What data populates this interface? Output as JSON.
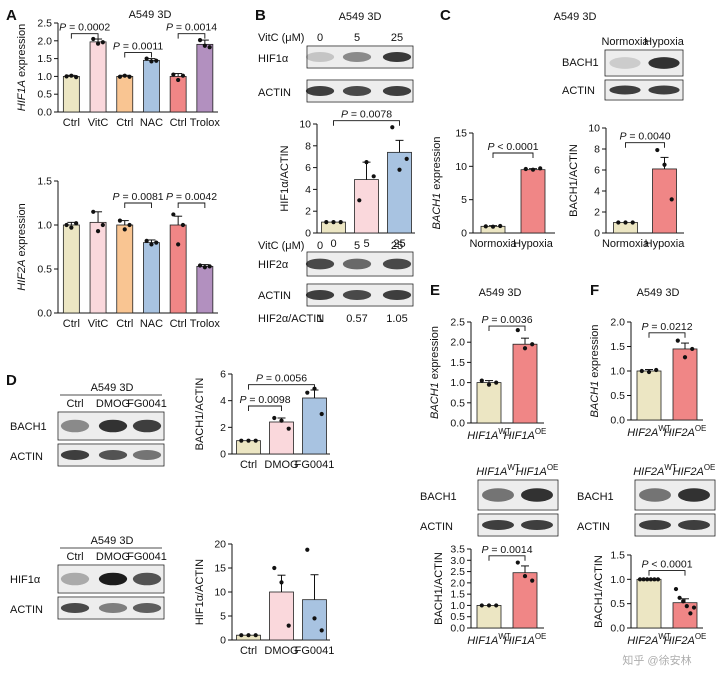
{
  "panels": {
    "A": {
      "label": "A",
      "context": "A549 3D"
    },
    "B": {
      "label": "B",
      "context": "A549 3D"
    },
    "C": {
      "label": "C",
      "context": "A549 3D"
    },
    "D": {
      "label": "D",
      "context": "A549 3D"
    },
    "E": {
      "label": "E",
      "context": "A549 3D"
    },
    "F": {
      "label": "F",
      "context": "A549 3D"
    }
  },
  "blots": {
    "B_top": {
      "header_label": "VitC (μM)",
      "lanes": [
        "0",
        "5",
        "25"
      ],
      "rows": [
        "HIF1α",
        "ACTIN"
      ]
    },
    "B_bottom": {
      "header_label": "VitC (μM)",
      "lanes": [
        "0",
        "5",
        "25"
      ],
      "rows": [
        "HIF2α",
        "ACTIN"
      ],
      "ratio_label": "HIF2α/ACTIN",
      "ratios": [
        "1",
        "0.57",
        "1.05"
      ]
    },
    "C": {
      "lanes": [
        "Normoxia",
        "Hypoxia"
      ],
      "rows": [
        "BACH1",
        "ACTIN"
      ]
    },
    "D_top": {
      "title": "A549 3D",
      "lanes": [
        "Ctrl",
        "DMOG",
        "FG0041"
      ],
      "rows": [
        "BACH1",
        "ACTIN"
      ]
    },
    "D_bottom": {
      "title": "A549 3D",
      "lanes": [
        "Ctrl",
        "DMOG",
        "FG0041"
      ],
      "rows": [
        "HIF1α",
        "ACTIN"
      ]
    },
    "E": {
      "lanes": [
        {
          "gene": "HIF1A",
          "sup": "WT"
        },
        {
          "gene": "HIF1A",
          "sup": "OE"
        }
      ],
      "rows": [
        "BACH1",
        "ACTIN"
      ]
    },
    "F": {
      "lanes": [
        {
          "gene": "HIF2A",
          "sup": "WT"
        },
        {
          "gene": "HIF2A",
          "sup": "OE"
        }
      ],
      "rows": [
        "BACH1",
        "ACTIN"
      ]
    }
  },
  "watermark": "知乎 @徐安林",
  "chart_data": [
    {
      "id": "A1",
      "type": "bar",
      "ylabel_gene": "HIF1A",
      "ylabel_rest": " expression",
      "categories": [
        "Ctrl",
        "VitC",
        "Ctrl",
        "NAC",
        "Ctrl",
        "Trolox"
      ],
      "values": [
        1.0,
        1.97,
        1.0,
        1.45,
        1.0,
        1.9
      ],
      "errors": [
        0.03,
        0.08,
        0.03,
        0.05,
        0.08,
        0.12
      ],
      "points": [
        [
          1.0,
          1.02,
          0.98
        ],
        [
          2.05,
          1.92,
          1.96
        ],
        [
          0.99,
          1.02,
          0.99
        ],
        [
          1.5,
          1.42,
          1.44
        ],
        [
          1.05,
          0.9,
          1.02
        ],
        [
          2.02,
          1.86,
          1.82
        ]
      ],
      "colors": [
        "#ece6c3",
        "#fad8dc",
        "#f9c592",
        "#a8c3e1",
        "#f08686",
        "#b290bf"
      ],
      "ylim": [
        0,
        2.5
      ],
      "yticks": [
        "0.0",
        "0.5",
        "1.0",
        "1.5",
        "2.0",
        "2.5"
      ],
      "yticks_values": [
        0,
        0.5,
        1.0,
        1.5,
        2.0,
        2.5
      ],
      "brackets": [
        {
          "from": 0,
          "to": 1,
          "y": 2.2,
          "p": "= 0.0002"
        },
        {
          "from": 2,
          "to": 3,
          "y": 1.67,
          "p": "= 0.0011"
        },
        {
          "from": 4,
          "to": 5,
          "y": 2.2,
          "p": "= 0.0014"
        }
      ]
    },
    {
      "id": "A2",
      "type": "bar",
      "ylabel_gene": "HIF2A",
      "ylabel_rest": " expression",
      "categories": [
        "Ctrl",
        "VitC",
        "Ctrl",
        "NAC",
        "Ctrl",
        "Trolox"
      ],
      "values": [
        1.0,
        1.03,
        1.0,
        0.8,
        1.0,
        0.53
      ],
      "errors": [
        0.03,
        0.12,
        0.05,
        0.03,
        0.1,
        0.02
      ],
      "points": [
        [
          1.0,
          0.97,
          1.02
        ],
        [
          1.15,
          0.93,
          1.0
        ],
        [
          1.05,
          0.95,
          1.0
        ],
        [
          0.82,
          0.78,
          0.8
        ],
        [
          1.12,
          0.78,
          1.0
        ],
        [
          0.54,
          0.52,
          0.53
        ]
      ],
      "colors": [
        "#ece6c3",
        "#fad8dc",
        "#f9c592",
        "#a8c3e1",
        "#f08686",
        "#b290bf"
      ],
      "ylim": [
        0,
        1.5
      ],
      "yticks": [
        "0.0",
        "0.5",
        "1.0",
        "1.5"
      ],
      "yticks_values": [
        0,
        0.5,
        1.0,
        1.5
      ],
      "brackets": [
        {
          "from": 2,
          "to": 3,
          "y": 1.25,
          "p": "= 0.0081"
        },
        {
          "from": 4,
          "to": 5,
          "y": 1.25,
          "p": "= 0.0042"
        }
      ]
    },
    {
      "id": "B",
      "type": "bar",
      "ylabel": "HIF1α/ACTIN",
      "categories": [
        "0",
        "5",
        "25"
      ],
      "values": [
        1.0,
        4.9,
        7.4
      ],
      "errors": [
        0.0,
        1.6,
        1.1
      ],
      "points": [
        [
          1.0,
          1.0,
          1.0
        ],
        [
          3.0,
          6.5,
          5.2
        ],
        [
          9.7,
          5.8,
          6.8
        ]
      ],
      "colors": [
        "#ece6c3",
        "#fad8dc",
        "#a8c3e1"
      ],
      "ylim": [
        0,
        10
      ],
      "yticks": [
        "0",
        "2",
        "4",
        "6",
        "8",
        "10"
      ],
      "yticks_values": [
        0,
        2,
        4,
        6,
        8,
        10
      ],
      "brackets": [
        {
          "from": 0,
          "to": 2,
          "y": 10.3,
          "p": "= 0.0078"
        }
      ]
    },
    {
      "id": "C1",
      "type": "bar",
      "ylabel_gene": "BACH1",
      "ylabel_rest": " expression",
      "categories": [
        "Normoxia",
        "Hypoxia"
      ],
      "values": [
        1.0,
        9.5
      ],
      "errors": [
        0.1,
        0.15
      ],
      "points": [
        [
          1.0,
          0.95,
          1.05
        ],
        [
          9.6,
          9.5,
          9.7
        ]
      ],
      "colors": [
        "#ece6c3",
        "#f08686"
      ],
      "ylim": [
        0,
        15
      ],
      "yticks": [
        "0",
        "5",
        "10",
        "15"
      ],
      "yticks_values": [
        0,
        5,
        10,
        15
      ],
      "brackets": [
        {
          "from": 0,
          "to": 1,
          "y": 12.0,
          "p": "< 0.0001"
        }
      ]
    },
    {
      "id": "C2",
      "type": "bar",
      "ylabel": "BACH1/ACTIN",
      "categories": [
        "Normoxia",
        "Hypoxia"
      ],
      "values": [
        1.0,
        6.1
      ],
      "errors": [
        0.0,
        1.1
      ],
      "points": [
        [
          1.0,
          1.0,
          1.0
        ],
        [
          7.9,
          6.5,
          3.2
        ]
      ],
      "colors": [
        "#ece6c3",
        "#f08686"
      ],
      "ylim": [
        0,
        10
      ],
      "yticks": [
        "0",
        "2",
        "4",
        "6",
        "8",
        "10"
      ],
      "yticks_values": [
        0,
        2,
        4,
        6,
        8,
        10
      ],
      "brackets": [
        {
          "from": 0,
          "to": 1,
          "y": 8.6,
          "p": "= 0.0040"
        }
      ]
    },
    {
      "id": "D1",
      "type": "bar",
      "ylabel": "BACH1/ACTIN",
      "categories": [
        "Ctrl",
        "DMOG",
        "FG0041"
      ],
      "values": [
        1.0,
        2.4,
        4.2
      ],
      "errors": [
        0.0,
        0.3,
        0.6
      ],
      "points": [
        [
          1.0,
          1.0,
          1.0
        ],
        [
          2.7,
          2.5,
          1.9
        ],
        [
          4.6,
          4.9,
          3.0
        ]
      ],
      "colors": [
        "#ece6c3",
        "#fad8dc",
        "#a8c3e1"
      ],
      "ylim": [
        0,
        6
      ],
      "yticks": [
        "0",
        "2",
        "4",
        "6"
      ],
      "yticks_values": [
        0,
        2,
        4,
        6
      ],
      "brackets": [
        {
          "from": 0,
          "to": 1,
          "y": 3.6,
          "p": "= 0.0098"
        },
        {
          "from": 0,
          "to": 2,
          "y": 5.2,
          "p": "= 0.0056"
        }
      ]
    },
    {
      "id": "D2",
      "type": "bar",
      "ylabel": "HIF1α/ACTIN",
      "categories": [
        "Ctrl",
        "DMOG",
        "FG0041"
      ],
      "values": [
        1.0,
        10.0,
        8.4
      ],
      "errors": [
        0.0,
        3.5,
        5.2
      ],
      "points": [
        [
          1.0,
          1.0,
          1.0
        ],
        [
          15.0,
          12.0,
          3.0
        ],
        [
          18.8,
          4.5,
          2.0
        ]
      ],
      "colors": [
        "#ece6c3",
        "#fad8dc",
        "#a8c3e1"
      ],
      "ylim": [
        0,
        20
      ],
      "yticks": [
        "0",
        "5",
        "10",
        "15",
        "20"
      ],
      "yticks_values": [
        0,
        5,
        10,
        15,
        20
      ],
      "brackets": []
    },
    {
      "id": "E1",
      "type": "bar",
      "ylabel_gene": "BACH1",
      "ylabel_rest": " expression",
      "categories": [
        {
          "gene": "HIF1A",
          "sup": "WT"
        },
        {
          "gene": "HIF1A",
          "sup": "OE"
        }
      ],
      "values": [
        1.0,
        1.95
      ],
      "errors": [
        0.05,
        0.15
      ],
      "points": [
        [
          1.05,
          0.95,
          1.0
        ],
        [
          2.3,
          1.85,
          1.95
        ]
      ],
      "colors": [
        "#ece6c3",
        "#f08686"
      ],
      "ylim": [
        0,
        2.5
      ],
      "yticks": [
        "0.0",
        "0.5",
        "1.0",
        "1.5",
        "2.0",
        "2.5"
      ],
      "yticks_values": [
        0,
        0.5,
        1.0,
        1.5,
        2.0,
        2.5
      ],
      "brackets": [
        {
          "from": 0,
          "to": 1,
          "y": 2.4,
          "p": "= 0.0036"
        }
      ]
    },
    {
      "id": "E2",
      "type": "bar",
      "ylabel": "BACH1/ACTIN",
      "categories": [
        {
          "gene": "HIF1A",
          "sup": "WT"
        },
        {
          "gene": "HIF1A",
          "sup": "OE"
        }
      ],
      "values": [
        1.0,
        2.45
      ],
      "errors": [
        0.0,
        0.3
      ],
      "points": [
        [
          1.0,
          1.0,
          1.0
        ],
        [
          2.9,
          2.3,
          2.1
        ]
      ],
      "colors": [
        "#ece6c3",
        "#f08686"
      ],
      "ylim": [
        0,
        3.5
      ],
      "yticks": [
        "0.0",
        "0.5",
        "1.0",
        "1.5",
        "2.0",
        "2.5",
        "3.0",
        "3.5"
      ],
      "yticks_values": [
        0,
        0.5,
        1.0,
        1.5,
        2.0,
        2.5,
        3.0,
        3.5
      ],
      "brackets": [
        {
          "from": 0,
          "to": 1,
          "y": 3.2,
          "p": "= 0.0014"
        }
      ]
    },
    {
      "id": "F1",
      "type": "bar",
      "ylabel_gene": "BACH1",
      "ylabel_rest": " expression",
      "categories": [
        {
          "gene": "HIF2A",
          "sup": "WT"
        },
        {
          "gene": "HIF2A",
          "sup": "OE"
        }
      ],
      "values": [
        1.0,
        1.45
      ],
      "errors": [
        0.03,
        0.12
      ],
      "points": [
        [
          1.0,
          0.98,
          1.02
        ],
        [
          1.62,
          1.28,
          1.45
        ]
      ],
      "colors": [
        "#ece6c3",
        "#f08686"
      ],
      "ylim": [
        0,
        2.0
      ],
      "yticks": [
        "0.0",
        "0.5",
        "1.0",
        "1.5",
        "2.0"
      ],
      "yticks_values": [
        0,
        0.5,
        1.0,
        1.5,
        2.0
      ],
      "brackets": [
        {
          "from": 0,
          "to": 1,
          "y": 1.78,
          "p": "= 0.0212"
        }
      ]
    },
    {
      "id": "F2",
      "type": "bar",
      "ylabel": "BACH1/ACTIN",
      "categories": [
        {
          "gene": "HIF2A",
          "sup": "WT"
        },
        {
          "gene": "HIF2A",
          "sup": "OE"
        }
      ],
      "values": [
        1.0,
        0.52
      ],
      "errors": [
        0.0,
        0.08
      ],
      "points": [
        [
          1.0,
          1.0,
          1.0,
          1.0,
          1.0,
          1.0
        ],
        [
          0.8,
          0.62,
          0.55,
          0.45,
          0.3,
          0.42
        ]
      ],
      "colors": [
        "#ece6c3",
        "#f08686"
      ],
      "ylim": [
        0,
        1.5
      ],
      "yticks": [
        "0.0",
        "0.5",
        "1.0",
        "1.5"
      ],
      "yticks_values": [
        0,
        0.5,
        1.0,
        1.5
      ],
      "brackets": [
        {
          "from": 0,
          "to": 1,
          "y": 1.18,
          "p": "< 0.0001"
        }
      ]
    }
  ]
}
